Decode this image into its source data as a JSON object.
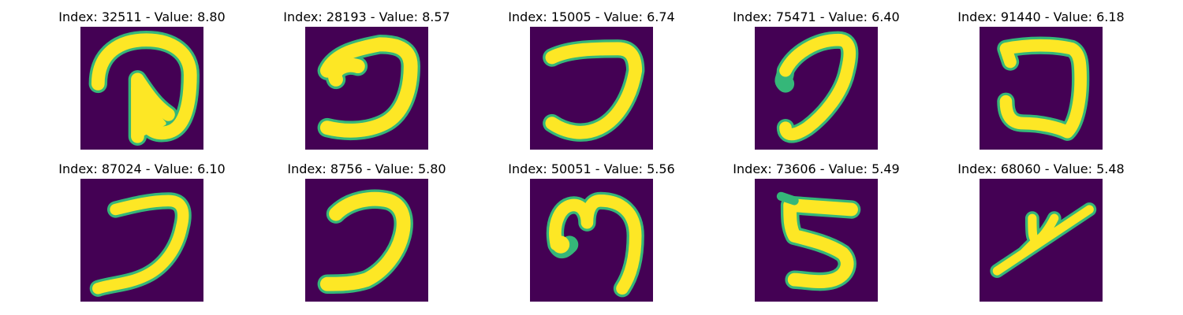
{
  "panels": [
    {
      "title": "Index: 32511 - Value: 8.80",
      "digit": "d0"
    },
    {
      "title": "Index: 28193 - Value: 8.57",
      "digit": "d1"
    },
    {
      "title": "Index: 15005 - Value: 6.74",
      "digit": "d2"
    },
    {
      "title": "Index: 75471 - Value: 6.40",
      "digit": "d3"
    },
    {
      "title": "Index: 91440 - Value: 6.18",
      "digit": "d4"
    },
    {
      "title": "Index: 87024 - Value: 6.10",
      "digit": "d5"
    },
    {
      "title": "Index: 8756 - Value: 5.80",
      "digit": "d6"
    },
    {
      "title": "Index: 50051 - Value: 5.56",
      "digit": "d7"
    },
    {
      "title": "Index: 73606 - Value: 5.49",
      "digit": "d8"
    },
    {
      "title": "Index: 68060 - Value: 5.48",
      "digit": "d9"
    }
  ],
  "colors": {
    "background": "#440154",
    "stroke": "#fde725",
    "edge": "#35b779"
  }
}
